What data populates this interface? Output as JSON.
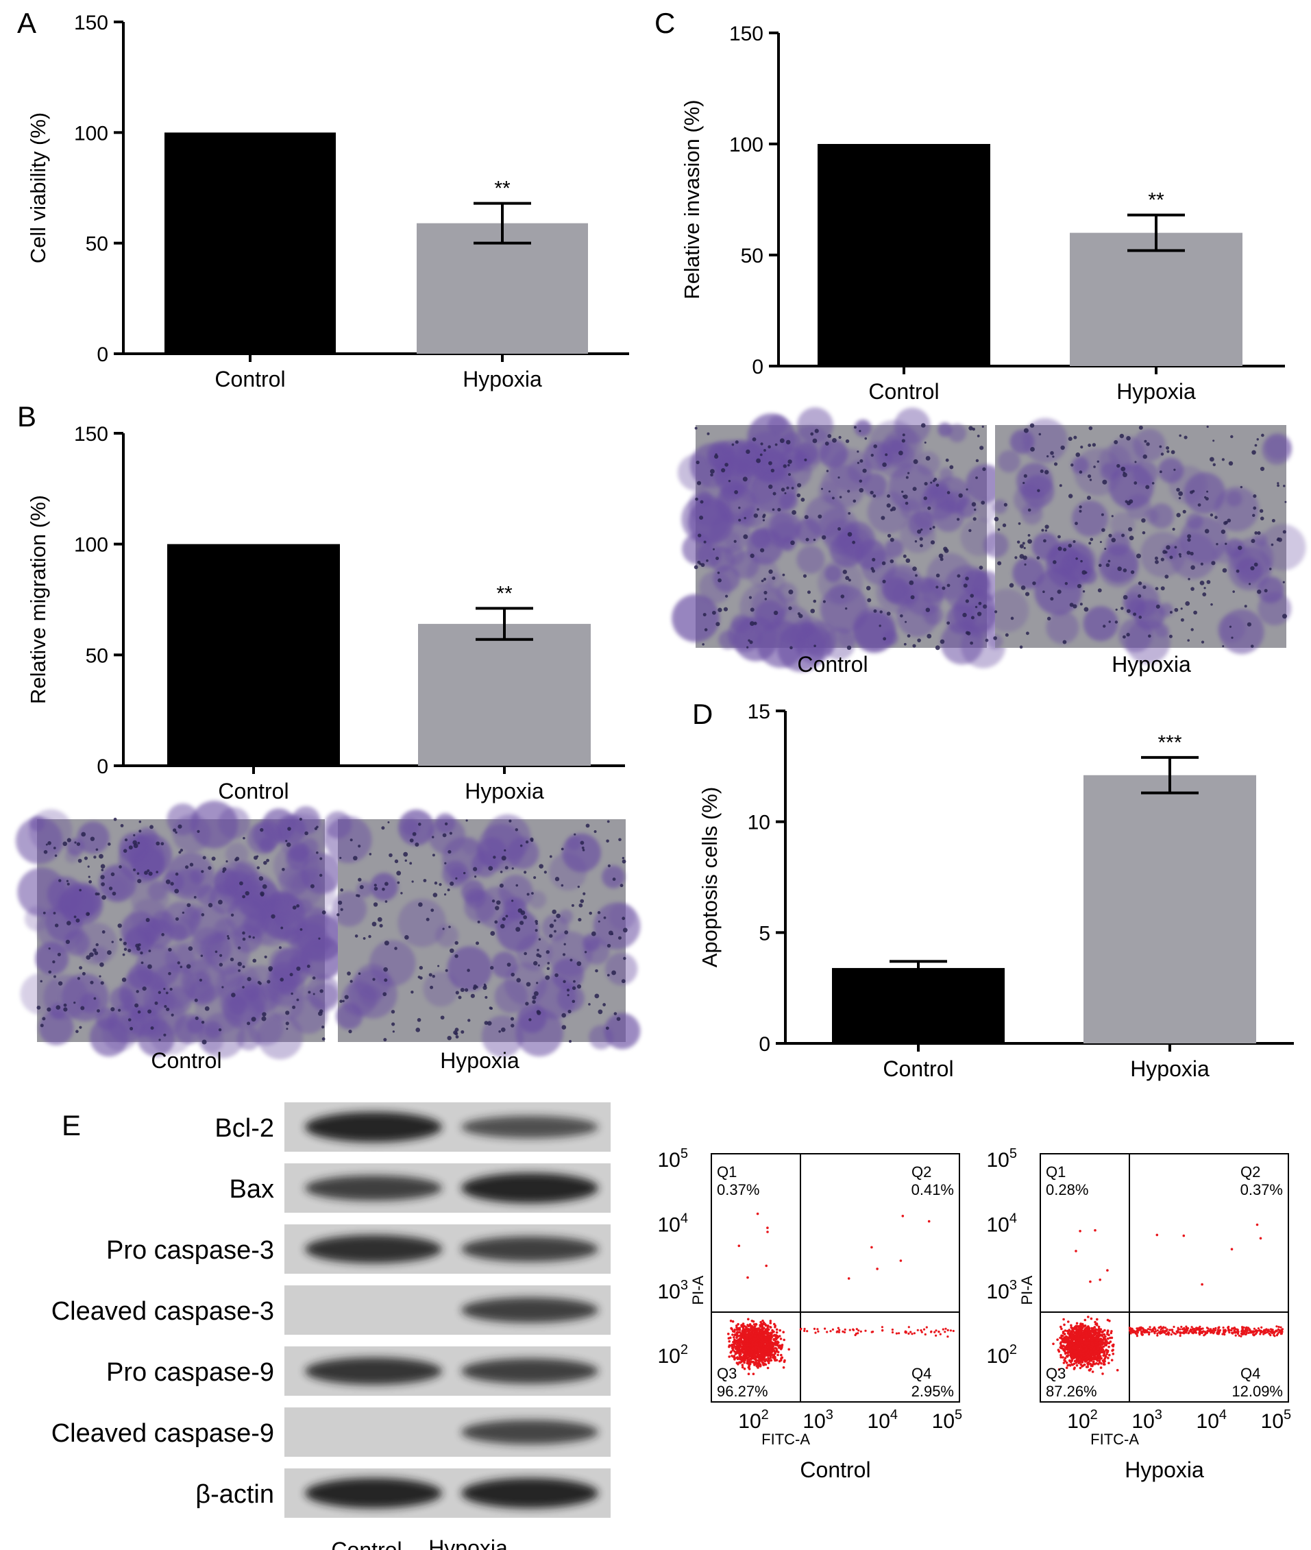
{
  "colors": {
    "control_bar": "#000000",
    "hypoxia_bar": "#a1a1a8",
    "stain": "#6a4fa3",
    "stain_background": "#9a9aa0",
    "flow_dots": "#e8151b",
    "blot_band": "#1a1a1a",
    "blot_background": "#cfcfcf"
  },
  "panels": {
    "A": {
      "letter": "A",
      "chart_data": {
        "type": "bar",
        "categories": [
          "Control",
          "Hypoxia"
        ],
        "values": [
          100,
          59
        ],
        "error": [
          0,
          9
        ],
        "significance": [
          "",
          "**"
        ],
        "ylabel": "Cell viability (%)",
        "xlabel": "",
        "ylim": [
          0,
          150
        ],
        "yticks": [
          "0",
          "50",
          "100",
          "150"
        ],
        "ytick_values": [
          0,
          50,
          100,
          150
        ],
        "grid": false
      }
    },
    "B": {
      "letter": "B",
      "chart_data": {
        "type": "bar",
        "categories": [
          "Control",
          "Hypoxia"
        ],
        "values": [
          100,
          64
        ],
        "error": [
          0,
          7
        ],
        "significance": [
          "",
          "**"
        ],
        "ylabel": "Relative migration (%)",
        "xlabel": "",
        "ylim": [
          0,
          150
        ],
        "yticks": [
          "0",
          "50",
          "100",
          "150"
        ],
        "ytick_values": [
          0,
          50,
          100,
          150
        ],
        "grid": false
      },
      "images": [
        "Control",
        "Hypoxia"
      ]
    },
    "C": {
      "letter": "C",
      "chart_data": {
        "type": "bar",
        "categories": [
          "Control",
          "Hypoxia"
        ],
        "values": [
          100,
          60
        ],
        "error": [
          0,
          8
        ],
        "significance": [
          "",
          "**"
        ],
        "ylabel": "Relative invasion (%)",
        "xlabel": "",
        "ylim": [
          0,
          150
        ],
        "yticks": [
          "0",
          "50",
          "100",
          "150"
        ],
        "ytick_values": [
          0,
          50,
          100,
          150
        ],
        "grid": false
      },
      "images": [
        "Control",
        "Hypoxia"
      ]
    },
    "D": {
      "letter": "D",
      "chart_data": {
        "type": "bar",
        "categories": [
          "Control",
          "Hypoxia"
        ],
        "values": [
          3.4,
          12.1
        ],
        "error": [
          0.3,
          0.8
        ],
        "significance": [
          "",
          "***"
        ],
        "ylabel": "Apoptosis cells (%)",
        "xlabel": "",
        "ylim": [
          0,
          15
        ],
        "yticks": [
          "0",
          "5",
          "10",
          "15"
        ],
        "ytick_values": [
          0,
          5,
          10,
          15
        ],
        "grid": false
      },
      "flow": [
        {
          "label": "Control",
          "xlabel": "FITC-A",
          "ylabel": "PI-A",
          "quadrants": {
            "q1": {
              "name": "Q1",
              "value": "0.37%"
            },
            "q2": {
              "name": "Q2",
              "value": "0.41%"
            },
            "q3": {
              "name": "Q3",
              "value": "96.27%"
            },
            "q4": {
              "name": "Q4",
              "value": "2.95%"
            }
          }
        },
        {
          "label": "Hypoxia",
          "xlabel": "FITC-A",
          "ylabel": "PI-A",
          "quadrants": {
            "q1": {
              "name": "Q1",
              "value": "0.28%"
            },
            "q2": {
              "name": "Q2",
              "value": "0.37%"
            },
            "q3": {
              "name": "Q3",
              "value": "87.26%"
            },
            "q4": {
              "name": "Q4",
              "value": "12.09%"
            }
          }
        }
      ],
      "flow_axis": {
        "base": "10",
        "x_exponents": [
          "2",
          "3",
          "4",
          "5"
        ],
        "y_exponents": [
          "2",
          "3",
          "4",
          "5"
        ]
      }
    },
    "E": {
      "letter": "E",
      "columns": [
        "Control",
        "Hypoxia"
      ],
      "rows": [
        {
          "label": "Bcl-2",
          "intensity": [
            1.0,
            0.6
          ]
        },
        {
          "label": "Bax",
          "intensity": [
            0.75,
            1.0
          ]
        },
        {
          "label": "Pro caspase-3",
          "intensity": [
            0.9,
            0.75
          ]
        },
        {
          "label": "Cleaved caspase-3",
          "intensity": [
            0.0,
            0.75
          ]
        },
        {
          "label": "Pro caspase-9",
          "intensity": [
            0.85,
            0.75
          ]
        },
        {
          "label": "Cleaved caspase-9",
          "intensity": [
            0.0,
            0.7
          ]
        },
        {
          "label": "β-actin",
          "intensity": [
            1.0,
            1.0
          ]
        }
      ]
    }
  }
}
